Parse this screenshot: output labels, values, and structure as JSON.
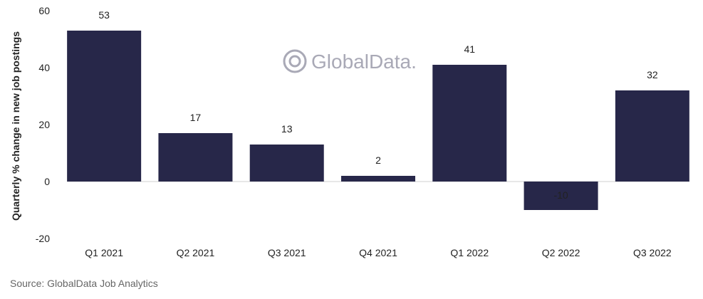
{
  "chart_data": {
    "type": "bar",
    "categories": [
      "Q1 2021",
      "Q2 2021",
      "Q3 2021",
      "Q4 2021",
      "Q1 2022",
      "Q2 2022",
      "Q3 2022"
    ],
    "values": [
      53,
      17,
      13,
      2,
      41,
      -10,
      32
    ],
    "data_labels": [
      "53",
      "17",
      "13",
      "2",
      "41",
      "-10",
      "32"
    ],
    "ylabel": "Quarterly % change in new job postings",
    "xlabel": "",
    "ylim": [
      -20,
      60
    ],
    "yticks": [
      -20,
      0,
      20,
      40,
      60
    ],
    "grid": false,
    "bar_color": "#272749",
    "source": "Source: GlobalData Job Analytics",
    "watermark": "GlobalData."
  }
}
